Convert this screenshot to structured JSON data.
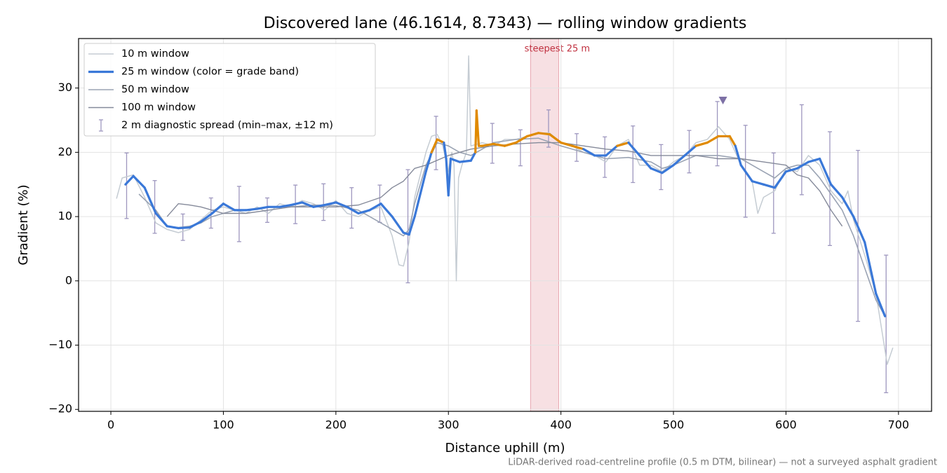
{
  "chart_data": {
    "type": "line",
    "title": "Discovered lane (46.1614, 8.7343) — rolling window gradients",
    "x_label": "Distance uphill (m)",
    "y_label": "Gradient (%)",
    "footnote": "LiDAR-derived road-centreline profile (0.5 m DTM, bilinear) — not a surveyed asphalt gradient",
    "xlim": [
      -28.7,
      729.4
    ],
    "ylim": [
      -20.3,
      37.7
    ],
    "xticks": [
      0,
      100,
      200,
      300,
      400,
      500,
      600,
      700
    ],
    "yticks": [
      {
        "value": -20,
        "label": "−20"
      },
      {
        "value": -10,
        "label": "−10"
      },
      0,
      10,
      20,
      30
    ],
    "grid": true,
    "legend": "upper left",
    "highlight": {
      "label": "steepest 25 m",
      "span": [
        373,
        398
      ],
      "color": "#e8a5b0"
    },
    "peak_marker": {
      "x": 544,
      "y": 28,
      "color": "#7d70a5"
    },
    "grade_band_threshold": 20,
    "grade_band_colors": [
      "#3a78d8",
      "#e08a00"
    ],
    "series": [
      {
        "name": "10 m window",
        "color": "#c5ccd3",
        "width": 1.5,
        "x": [
          5,
          10,
          20,
          30,
          40,
          50,
          60,
          70,
          80,
          90,
          100,
          110,
          120,
          130,
          140,
          150,
          160,
          170,
          180,
          190,
          200,
          210,
          220,
          230,
          240,
          250,
          256,
          260,
          265,
          270,
          280,
          285,
          290,
          295,
          300,
          303,
          305,
          307,
          309,
          312,
          316,
          318,
          320,
          330,
          340,
          350,
          360,
          370,
          380,
          390,
          400,
          410,
          420,
          430,
          440,
          450,
          460,
          470,
          480,
          490,
          500,
          510,
          520,
          530,
          540,
          550,
          560,
          570,
          575,
          580,
          590,
          600,
          610,
          620,
          630,
          640,
          650,
          655,
          660,
          670,
          680,
          690,
          695
        ],
        "values": [
          12.8,
          16,
          16.5,
          13,
          9,
          8,
          7.5,
          8,
          9.5,
          11,
          11.5,
          11,
          10.5,
          11.5,
          10.5,
          12,
          11.5,
          12.5,
          12,
          11,
          12.5,
          10.5,
          10,
          11,
          11.5,
          7,
          2.5,
          2.3,
          6,
          13,
          20,
          22.5,
          22.8,
          21,
          17,
          20,
          18,
          0,
          16,
          18,
          20,
          35,
          21,
          21.5,
          21,
          22,
          22,
          22.5,
          23,
          23,
          21.5,
          21,
          20,
          19.5,
          18.5,
          21,
          22,
          18,
          18,
          17,
          18.5,
          19.5,
          21.5,
          22,
          24,
          22,
          18,
          15.5,
          10.5,
          13,
          14,
          17.5,
          17,
          19.5,
          18,
          14,
          12,
          14,
          9.5,
          4,
          -2,
          -13,
          -10.4
        ]
      },
      {
        "name": "25 m window (color = grade band)",
        "color": "#3a78d8",
        "width": 3.2,
        "banded": true,
        "x": [
          13,
          20,
          30,
          40,
          50,
          60,
          70,
          80,
          90,
          100,
          110,
          120,
          130,
          140,
          150,
          160,
          170,
          180,
          190,
          200,
          210,
          220,
          230,
          240,
          250,
          260,
          265,
          270,
          280,
          285,
          290,
          296,
          298,
          300,
          302,
          310,
          320,
          324,
          325,
          327,
          330,
          340,
          350,
          360,
          370,
          380,
          390,
          400,
          410,
          420,
          430,
          440,
          450,
          460,
          470,
          480,
          490,
          500,
          510,
          520,
          530,
          540,
          550,
          555,
          560,
          570,
          580,
          590,
          600,
          610,
          620,
          630,
          640,
          650,
          660,
          670,
          680,
          688
        ],
        "values": [
          15,
          16.3,
          14.5,
          10.5,
          8.5,
          8.2,
          8.3,
          9.2,
          10.5,
          12,
          11,
          11,
          11.2,
          11.5,
          11.5,
          11.8,
          12.2,
          11.5,
          11.8,
          12.2,
          11.5,
          10.5,
          11,
          12,
          10,
          7.5,
          7.2,
          10,
          17,
          20,
          22,
          21.5,
          19,
          13.3,
          19,
          18.5,
          18.7,
          20,
          26.5,
          21,
          21,
          21.3,
          21,
          21.5,
          22.5,
          23,
          22.8,
          21.5,
          21,
          20.5,
          19.5,
          19.5,
          21,
          21.5,
          19.5,
          17.5,
          16.8,
          18,
          19.5,
          21,
          21.5,
          22.5,
          22.5,
          21,
          18,
          15.5,
          15,
          14.5,
          17,
          17.5,
          18.5,
          19,
          15,
          13,
          10,
          6,
          -2,
          -5.5
        ]
      },
      {
        "name": "50 m window",
        "color": "#9aa3b3",
        "width": 1.6,
        "x": [
          25,
          40,
          50,
          60,
          70,
          80,
          90,
          100,
          110,
          120,
          140,
          160,
          180,
          200,
          220,
          230,
          240,
          250,
          260,
          265,
          270,
          280,
          290,
          300,
          310,
          320,
          330,
          340,
          360,
          380,
          400,
          420,
          440,
          460,
          480,
          490,
          500,
          520,
          540,
          560,
          570,
          580,
          590,
          600,
          610,
          620,
          630,
          640,
          650,
          660,
          670,
          680,
          688
        ],
        "values": [
          13.5,
          11,
          8.5,
          8.3,
          8.5,
          9,
          10,
          10.5,
          11,
          11,
          11.5,
          11.5,
          11.8,
          11.7,
          11,
          10,
          9,
          8,
          7,
          8,
          12,
          18,
          21.5,
          21,
          20,
          19.5,
          20.5,
          21.5,
          22,
          22.2,
          21,
          20,
          19,
          19.2,
          18.5,
          17.5,
          18,
          19.5,
          19.5,
          19,
          18,
          17,
          16,
          17.5,
          18,
          18,
          16,
          13.5,
          11,
          7,
          2,
          -3,
          -5.5
        ]
      },
      {
        "name": "100 m window",
        "color": "#858a9a",
        "width": 1.4,
        "x": [
          50,
          60,
          70,
          80,
          90,
          100,
          120,
          140,
          160,
          180,
          200,
          220,
          240,
          250,
          260,
          270,
          280,
          300,
          320,
          340,
          360,
          380,
          400,
          420,
          440,
          460,
          480,
          500,
          520,
          540,
          560,
          580,
          600,
          610,
          620,
          630,
          640,
          650
        ],
        "values": [
          10,
          12,
          11.8,
          11.5,
          11,
          10.5,
          10.5,
          11,
          11.5,
          11.5,
          11.5,
          11.8,
          13,
          14.5,
          15.5,
          17.5,
          18,
          19.5,
          20.5,
          21,
          21.3,
          21.5,
          21.5,
          21,
          20.5,
          20.2,
          19.5,
          19.5,
          19.5,
          19,
          19,
          18.5,
          18,
          16.5,
          16,
          14,
          11,
          8.5
        ]
      }
    ],
    "errorbars": {
      "name": "2 m diagnostic spread (min–max, ±12 m)",
      "color": "#9e97bf",
      "x": [
        14,
        39,
        64,
        89,
        114,
        139,
        164,
        189,
        214,
        239,
        264,
        289,
        339,
        364,
        389,
        414,
        439,
        464,
        489,
        514,
        539,
        564,
        589,
        614,
        639,
        664,
        689
      ],
      "low": [
        9.7,
        7.4,
        6.3,
        8.2,
        6.1,
        9.1,
        8.9,
        9.4,
        8.2,
        9.1,
        -0.3,
        17.3,
        18.3,
        17.9,
        20.8,
        18.6,
        16.1,
        15.3,
        14.2,
        16.8,
        17.9,
        9.9,
        7.4,
        13.4,
        5.5,
        -6.3,
        -17.4
      ],
      "high": [
        19.9,
        15.6,
        10.4,
        12.9,
        14.7,
        12.9,
        14.9,
        15.1,
        14.5,
        14.9,
        17.3,
        25.6,
        24.5,
        23.5,
        26.6,
        22.9,
        22.4,
        24.1,
        21.2,
        23.4,
        27.9,
        24.2,
        19.9,
        27.4,
        23.2,
        20.3,
        4.0
      ]
    }
  }
}
